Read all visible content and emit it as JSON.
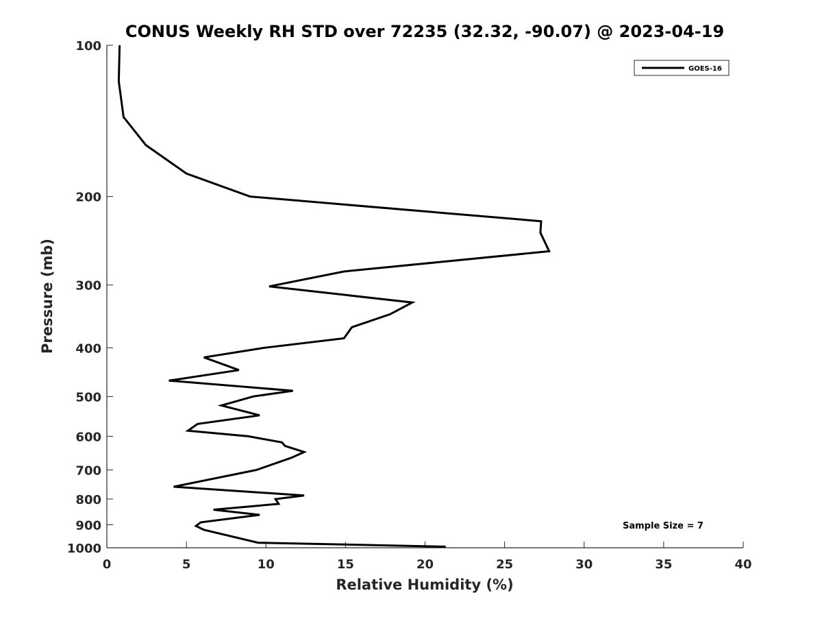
{
  "chart_data": {
    "type": "line",
    "title": "CONUS Weekly RH STD over 72235 (32.32, -90.07) @ 2023-04-19",
    "xlabel": "Relative Humidity (%)",
    "ylabel": "Pressure (mb)",
    "xlim": [
      0,
      40
    ],
    "ylim": [
      100,
      1000
    ],
    "y_scale": "log",
    "y_reversed": true,
    "xticks": [
      0,
      5,
      10,
      15,
      20,
      25,
      30,
      35,
      40
    ],
    "xtick_labels": [
      "0",
      "5",
      "10",
      "15",
      "20",
      "25",
      "30",
      "35",
      "40"
    ],
    "yticks": [
      100,
      200,
      300,
      400,
      500,
      600,
      700,
      800,
      900,
      1000
    ],
    "ytick_labels": [
      "100",
      "200",
      "300",
      "400",
      "500",
      "600",
      "700",
      "800",
      "900",
      "1000"
    ],
    "grid": false,
    "legend_position": "top-right",
    "annotation": "Sample Size = 7",
    "series": [
      {
        "name": "GOES-16",
        "color": "#000000",
        "x": [
          0.8,
          0.75,
          1.05,
          2.45,
          5.0,
          9.0,
          27.3,
          27.25,
          27.8,
          14.9,
          10.2,
          19.2,
          17.8,
          15.4,
          14.9,
          9.9,
          6.1,
          8.3,
          3.9,
          11.7,
          9.2,
          7.2,
          9.6,
          5.7,
          5.1,
          8.9,
          11.0,
          11.2,
          12.4,
          11.6,
          9.4,
          4.2,
          12.4,
          10.6,
          10.8,
          6.7,
          9.6,
          5.9,
          5.6,
          6.1,
          9.5,
          21.3
        ],
        "y": [
          100,
          118,
          139,
          158,
          180,
          200,
          224,
          236,
          257,
          282,
          302,
          325,
          343,
          364,
          383,
          400,
          418,
          443,
          465,
          487,
          500,
          521,
          545,
          567,
          585,
          600,
          617,
          627,
          645,
          662,
          700,
          756,
          787,
          800,
          818,
          840,
          860,
          890,
          905,
          921,
          977,
          995
        ]
      }
    ]
  }
}
